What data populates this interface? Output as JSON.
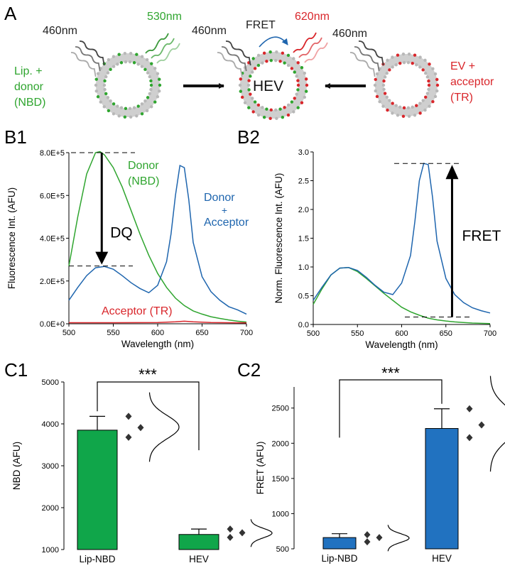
{
  "panel_labels": [
    "A",
    "B1",
    "B2",
    "C1",
    "C2"
  ],
  "colors": {
    "green": "#2fa52f",
    "blue": "#1e65ae",
    "red": "#d9262b",
    "bar_green": "#10a64a",
    "bar_blue": "#2172c0"
  },
  "schematic": {
    "donor_vesicle": {
      "label_lines": [
        "Lip. +",
        "donor",
        "(NBD)"
      ],
      "excitation": "460nm",
      "emission": "530nm"
    },
    "hev_vesicle": {
      "label": "HEV",
      "excitation": "460nm",
      "transfer": "FRET",
      "emission": "620nm"
    },
    "acceptor_vesicle": {
      "label_lines": [
        "EV +",
        "acceptor",
        "(TR)"
      ],
      "excitation": "460nm"
    }
  },
  "chart_data": [
    {
      "id": "B1",
      "type": "line",
      "xlabel": "Wavelength (nm)",
      "ylabel": "Fluorescence Int. (AFU)",
      "xlim": [
        500,
        700
      ],
      "ylim": [
        0,
        800000
      ],
      "xticks": [
        "500",
        "550",
        "600",
        "650",
        "700"
      ],
      "yticks": [
        "0.0E+0",
        "2.0E+5",
        "4.0E+5",
        "6.0E+5",
        "8.0E+5"
      ],
      "series": [
        {
          "name": "Donor (NBD)",
          "label_lines": [
            "Donor",
            "(NBD)"
          ],
          "color": "#2fa52f",
          "x": [
            500,
            510,
            520,
            530,
            535,
            540,
            550,
            560,
            570,
            580,
            590,
            600,
            610,
            620,
            630,
            640,
            650,
            660,
            670,
            680,
            690,
            700
          ],
          "y": [
            270000,
            500000,
            700000,
            800000,
            805000,
            790000,
            730000,
            640000,
            530000,
            420000,
            320000,
            235000,
            170000,
            120000,
            85000,
            60000,
            45000,
            33000,
            25000,
            18000,
            12000,
            8000
          ]
        },
        {
          "name": "Donor + Acceptor",
          "label_lines": [
            "Donor",
            "+",
            "Acceptor"
          ],
          "color": "#1e65ae",
          "x": [
            500,
            510,
            520,
            530,
            540,
            550,
            560,
            570,
            580,
            590,
            600,
            610,
            615,
            620,
            625,
            630,
            635,
            640,
            650,
            660,
            670,
            680,
            690,
            700
          ],
          "y": [
            110000,
            170000,
            225000,
            262000,
            268000,
            255000,
            225000,
            192000,
            165000,
            145000,
            180000,
            290000,
            420000,
            600000,
            740000,
            730000,
            580000,
            380000,
            220000,
            150000,
            110000,
            80000,
            65000,
            45000
          ]
        },
        {
          "name": "Acceptor (TR)",
          "label_lines": [
            "Acceptor (TR)"
          ],
          "color": "#d9262b",
          "x": [
            500,
            550,
            600,
            620,
            630,
            640,
            660,
            700
          ],
          "y": [
            5000,
            5000,
            6000,
            9000,
            12000,
            9000,
            6000,
            4000
          ]
        }
      ],
      "annotation": {
        "label": "DQ",
        "from_value": 800000,
        "to_value": 270000,
        "at_x": 537
      }
    },
    {
      "id": "B2",
      "type": "line",
      "xlabel": "Wavelength (nm)",
      "ylabel": "Norm. Fluorescence Int. (AFU)",
      "xlim": [
        500,
        700
      ],
      "ylim": [
        0,
        3.0
      ],
      "xticks": [
        "500",
        "550",
        "600",
        "650",
        "700"
      ],
      "yticks": [
        "0.0",
        "0.5",
        "1.0",
        "1.5",
        "2.0",
        "2.5",
        "3.0"
      ],
      "series": [
        {
          "color": "#2fa52f",
          "x": [
            500,
            510,
            520,
            530,
            540,
            550,
            560,
            570,
            580,
            590,
            600,
            610,
            620,
            630,
            640,
            650,
            660,
            670,
            680,
            690,
            700
          ],
          "y": [
            0.35,
            0.62,
            0.86,
            0.98,
            0.99,
            0.92,
            0.8,
            0.67,
            0.54,
            0.42,
            0.3,
            0.22,
            0.16,
            0.11,
            0.08,
            0.06,
            0.045,
            0.035,
            0.025,
            0.02,
            0.015
          ]
        },
        {
          "color": "#1e65ae",
          "x": [
            500,
            510,
            520,
            530,
            540,
            550,
            560,
            570,
            580,
            590,
            600,
            610,
            615,
            620,
            625,
            630,
            635,
            640,
            650,
            660,
            670,
            680,
            690,
            700
          ],
          "y": [
            0.42,
            0.65,
            0.86,
            0.98,
            0.99,
            0.94,
            0.82,
            0.68,
            0.56,
            0.52,
            0.72,
            1.2,
            1.8,
            2.5,
            2.8,
            2.78,
            2.2,
            1.45,
            0.8,
            0.52,
            0.38,
            0.29,
            0.24,
            0.2
          ]
        }
      ],
      "annotation": {
        "label": "FRET",
        "from_value": 0.13,
        "to_value": 2.8,
        "at_x": 657
      }
    },
    {
      "id": "C1",
      "type": "bar",
      "ylabel": "NBD (AFU)",
      "categories": [
        "Lip-NBD",
        "HEV"
      ],
      "values": [
        3850,
        1360
      ],
      "errors": [
        330,
        130
      ],
      "points": [
        [
          4180,
          3910,
          3680
        ],
        [
          1490,
          1400,
          1290
        ]
      ],
      "ylim": [
        1000,
        5000
      ],
      "yticks": [
        "1000",
        "2000",
        "3000",
        "4000",
        "5000"
      ],
      "significance": "***",
      "bar_color": "#10a64a"
    },
    {
      "id": "C2",
      "type": "bar",
      "ylabel": "FRET (AFU)",
      "categories": [
        "Lip-NBD",
        "HEV"
      ],
      "values": [
        660,
        2210
      ],
      "errors": [
        55,
        280
      ],
      "points": [
        [
          700,
          660,
          600
        ],
        [
          2490,
          2260,
          2080
        ]
      ],
      "ylim": [
        500,
        2800
      ],
      "yticks": [
        "500",
        "1000",
        "1500",
        "2000",
        "2500"
      ],
      "significance": "***",
      "bar_color": "#2172c0"
    }
  ]
}
